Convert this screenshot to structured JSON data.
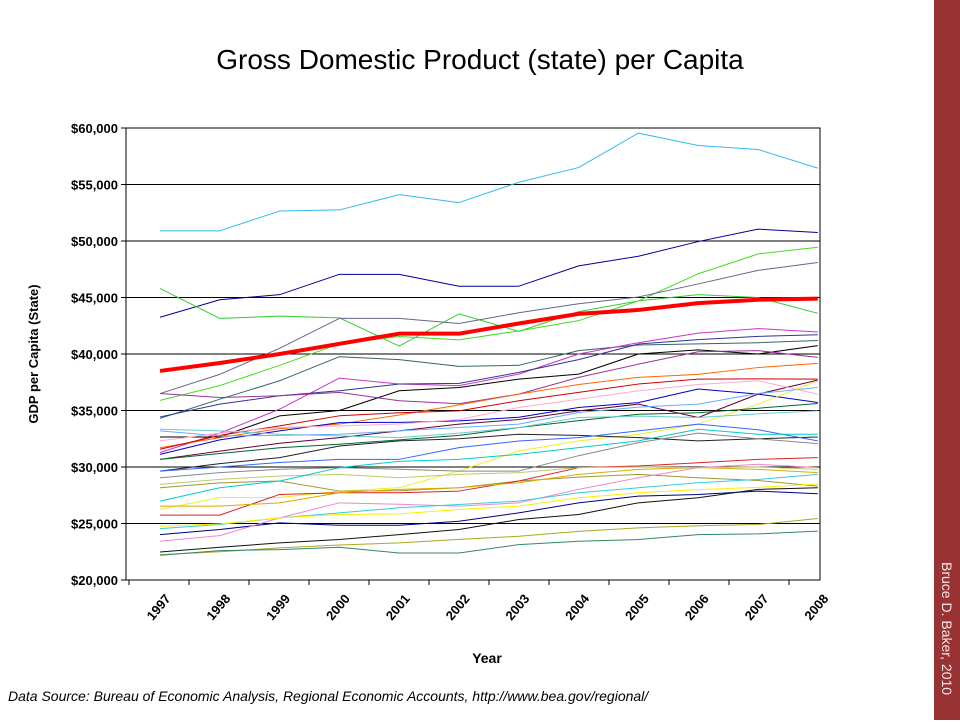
{
  "chart_data": {
    "type": "line",
    "title": "Gross Domestic Product (state) per Capita",
    "xlabel": "Year",
    "ylabel": "GDP per Capita (State)",
    "ylim": [
      20000,
      60000
    ],
    "yticks": [
      "$20,000",
      "$25,000",
      "$30,000",
      "$35,000",
      "$40,000",
      "$45,000",
      "$50,000",
      "$55,000",
      "$60,000"
    ],
    "ytick_values": [
      20000,
      25000,
      30000,
      35000,
      40000,
      45000,
      50000,
      55000,
      60000
    ],
    "categories": [
      "1997",
      "1998",
      "1999",
      "2000",
      "2001",
      "2002",
      "2003",
      "2004",
      "2005",
      "2006",
      "2007",
      "2008"
    ],
    "grid": "horizontal",
    "legend": "none",
    "series": [
      {
        "color": "#33bbee",
        "width": 1,
        "values": [
          50900,
          50900,
          52650,
          52750,
          54100,
          53400,
          55200,
          56500,
          59550,
          58450,
          58100,
          56450
        ]
      },
      {
        "color": "#000099",
        "width": 1,
        "values": [
          43250,
          44800,
          45250,
          47050,
          47050,
          46000,
          46000,
          47800,
          48650,
          49950,
          51050,
          50750
        ]
      },
      {
        "color": "#33cc33",
        "width": 1,
        "values": [
          45800,
          43150,
          43350,
          43200,
          40700,
          43550,
          42000,
          43750,
          44700,
          45250,
          45000,
          43600
        ]
      },
      {
        "color": "#44dd22",
        "width": 1,
        "values": [
          35900,
          37200,
          39000,
          40900,
          41550,
          41250,
          42050,
          42950,
          44700,
          47100,
          48850,
          49450
        ]
      },
      {
        "color": "#666688",
        "width": 1,
        "values": [
          36500,
          38200,
          40500,
          43150,
          43150,
          42700,
          43650,
          44450,
          45050,
          46200,
          47400,
          48100
        ]
      },
      {
        "color": "#336666",
        "width": 1,
        "values": [
          34300,
          36000,
          37630,
          39760,
          39500,
          38900,
          39000,
          40300,
          40800,
          40900,
          41000,
          41200
        ]
      },
      {
        "color": "#cc33cc",
        "width": 1,
        "values": [
          31270,
          33000,
          35120,
          37870,
          37340,
          37200,
          38220,
          40000,
          41000,
          41850,
          42250,
          41950
        ]
      },
      {
        "color": "#333399",
        "width": 1,
        "values": [
          34430,
          35560,
          36300,
          36750,
          37340,
          37400,
          38370,
          39500,
          40880,
          41270,
          41560,
          41700
        ]
      },
      {
        "color": "#000000",
        "width": 1,
        "values": [
          32660,
          32660,
          34520,
          35000,
          36750,
          37040,
          37780,
          38220,
          40000,
          40360,
          40000,
          40740
        ]
      },
      {
        "color": "#993399",
        "width": 1,
        "values": [
          36500,
          36150,
          36300,
          36600,
          35860,
          35600,
          36450,
          37930,
          39100,
          40200,
          40300,
          39700
        ]
      },
      {
        "color": "#ff6600",
        "width": 1,
        "values": [
          31700,
          32600,
          33400,
          33800,
          34600,
          35500,
          36450,
          37300,
          37930,
          38200,
          38800,
          39170
        ]
      },
      {
        "color": "#cc0000",
        "width": 1,
        "values": [
          31570,
          32800,
          33640,
          34530,
          34800,
          34970,
          35860,
          36600,
          37340,
          37780,
          37800,
          37780
        ]
      },
      {
        "color": "#0000cc",
        "width": 1,
        "values": [
          31120,
          32400,
          33200,
          33930,
          33950,
          34080,
          34400,
          35270,
          35700,
          36900,
          36450,
          35710
        ]
      },
      {
        "color": "#660033",
        "width": 1,
        "values": [
          30680,
          31400,
          32100,
          32600,
          33200,
          33790,
          34200,
          34970,
          35560,
          34380,
          36450,
          37690
        ]
      },
      {
        "color": "#eeee22",
        "width": 1,
        "values": [
          26240,
          27300,
          27300,
          27870,
          28160,
          29650,
          31420,
          32310,
          32900,
          33790,
          35560,
          37630
        ]
      },
      {
        "color": "#006633",
        "width": 1,
        "values": [
          30680,
          31200,
          31700,
          32010,
          32400,
          32800,
          33490,
          34100,
          34670,
          34800,
          35200,
          35620
        ]
      },
      {
        "color": "#66cccc",
        "width": 1,
        "values": [
          33340,
          33200,
          32900,
          32750,
          32600,
          33000,
          33500,
          34380,
          34500,
          34380,
          34700,
          34970
        ]
      },
      {
        "color": "#222222",
        "width": 1,
        "values": [
          29640,
          30300,
          30830,
          31860,
          32310,
          32500,
          32900,
          32800,
          32600,
          32310,
          32500,
          32660
        ]
      },
      {
        "color": "#3366ff",
        "width": 1,
        "values": [
          29640,
          30000,
          30400,
          30680,
          30680,
          31710,
          32300,
          32600,
          33200,
          33790,
          33300,
          32310
        ]
      },
      {
        "color": "#888888",
        "width": 1,
        "values": [
          29050,
          29500,
          29800,
          29940,
          29800,
          29640,
          29640,
          31000,
          32160,
          33000,
          32500,
          32070
        ]
      },
      {
        "color": "#999933",
        "width": 1,
        "values": [
          28160,
          28600,
          28760,
          27870,
          27900,
          28160,
          28760,
          29100,
          29350,
          29050,
          28800,
          28310
        ]
      },
      {
        "color": "#dd2222",
        "width": 1,
        "values": [
          25740,
          25740,
          27570,
          27720,
          27720,
          27870,
          28760,
          29940,
          30090,
          30380,
          30680,
          30830
        ]
      },
      {
        "color": "#000088",
        "width": 1,
        "values": [
          24020,
          24470,
          25060,
          24850,
          24850,
          25200,
          25940,
          26830,
          27420,
          27570,
          27870,
          27630
        ]
      },
      {
        "color": "#111111",
        "width": 1,
        "values": [
          22480,
          22900,
          23280,
          23580,
          24020,
          24470,
          25350,
          25800,
          26830,
          27280,
          28020,
          28160
        ]
      },
      {
        "color": "#aaaa22",
        "width": 1,
        "values": [
          22250,
          22500,
          22840,
          23100,
          23280,
          23600,
          23870,
          24300,
          24610,
          24800,
          24910,
          25440
        ]
      },
      {
        "color": "#338866",
        "width": 1,
        "values": [
          22190,
          22600,
          22690,
          22900,
          22390,
          22390,
          23130,
          23430,
          23580,
          24020,
          24080,
          24320
        ]
      },
      {
        "color": "#ee88cc",
        "width": 1,
        "values": [
          23430,
          23930,
          25500,
          26830,
          26700,
          26540,
          26830,
          28020,
          29050,
          29940,
          30240,
          29940
        ]
      },
      {
        "color": "#33ccdd",
        "width": 1,
        "values": [
          24550,
          24910,
          25500,
          25940,
          26390,
          26680,
          26980,
          27720,
          28160,
          28610,
          28900,
          29350
        ]
      },
      {
        "color": "#ffee00",
        "width": 1,
        "values": [
          24760,
          24970,
          25500,
          25800,
          25850,
          26240,
          26540,
          27280,
          27720,
          28000,
          28200,
          28500
        ]
      },
      {
        "color": "#ddaa00",
        "width": 1,
        "values": [
          26540,
          26540,
          26830,
          27720,
          28020,
          28160,
          28610,
          29350,
          29790,
          29940,
          29790,
          29500
        ]
      },
      {
        "color": "#bbcc66",
        "width": 1,
        "values": [
          28460,
          28900,
          29200,
          29350,
          29050,
          29350,
          29500,
          29940,
          30000,
          29940,
          30000,
          29790
        ]
      },
      {
        "color": "#00cccc",
        "width": 1,
        "values": [
          26980,
          28160,
          28760,
          29940,
          30500,
          30680,
          31120,
          31710,
          32310,
          33340,
          32900,
          32900
        ]
      },
      {
        "color": "#66aaff",
        "width": 1,
        "values": [
          33200,
          32750,
          32800,
          32900,
          33200,
          33500,
          33790,
          34820,
          35300,
          35560,
          36500,
          37040
        ]
      },
      {
        "color": "#ffaacc",
        "width": 1,
        "values": [
          32310,
          33000,
          33500,
          33640,
          33800,
          34200,
          35270,
          36000,
          36740,
          37300,
          37630,
          36450
        ]
      },
      {
        "color": "#ff0000",
        "width": 4,
        "values": [
          38500,
          39200,
          40000,
          40900,
          41800,
          41800,
          42700,
          43550,
          43900,
          44500,
          44800,
          44900
        ]
      }
    ]
  },
  "source": "Data Source: Bureau of Economic Analysis, Regional Economic Accounts, http://www.bea.gov/regional/",
  "credit": "Bruce D. Baker, 2010",
  "colors": {
    "sidebar": "#993333"
  }
}
